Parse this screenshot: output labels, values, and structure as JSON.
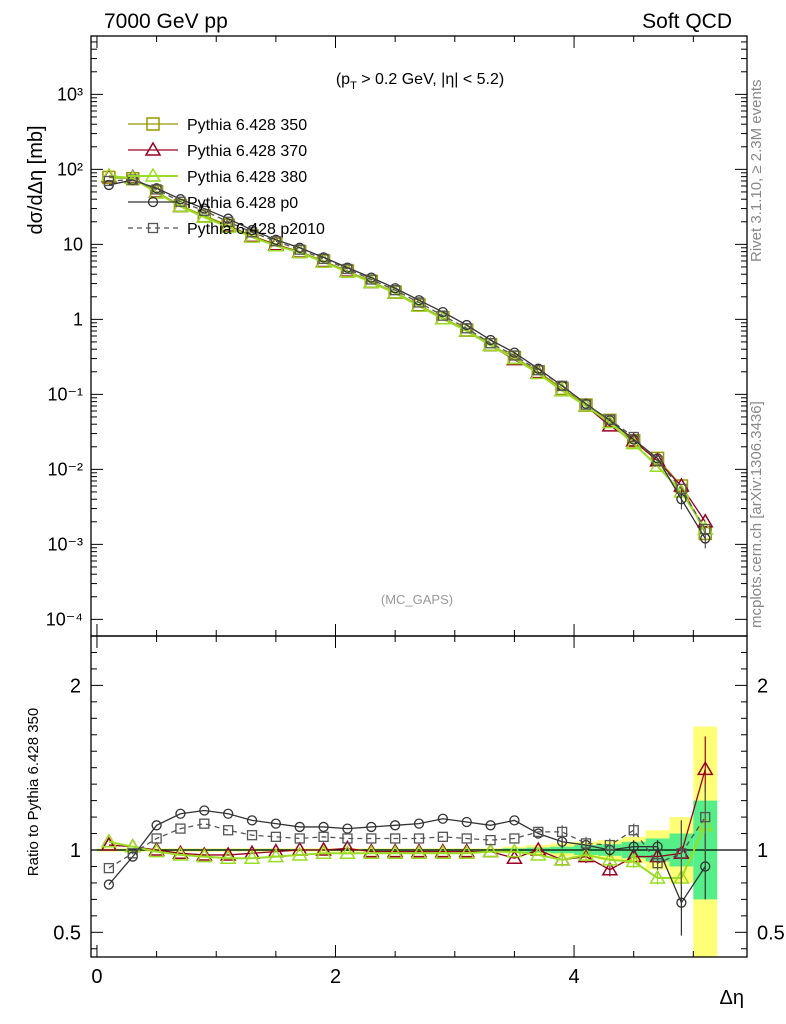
{
  "header": {
    "left": "7000 GeV pp",
    "right": "Soft QCD"
  },
  "annotations": {
    "cut_label": "(p_T > 0.2 GeV, |η| < 5.2)",
    "watermark": "(MC_GAPS)",
    "side_right_top": "Rivet 3.1.10, ≥ 2.3M events",
    "side_right_bottom": "mcplots.cern.ch [arXiv:1306.3436]"
  },
  "colors": {
    "p350": "#999900",
    "p370": "#990022",
    "p380": "#99dd22",
    "p0": "#333333",
    "p2010": "#555555",
    "band_outer": "#ffff77",
    "band_inner": "#55ee88"
  },
  "chart_data": [
    {
      "type": "line",
      "xlabel": "Δη",
      "ylabel": "dσ/dΔη [mb]",
      "yscale": "log",
      "ylim": [
        6e-05,
        6000
      ],
      "xlim": [
        -0.05,
        5.45
      ],
      "y_ticks": [
        "10⁻⁴",
        "10⁻³",
        "10⁻²",
        "10⁻¹",
        "1",
        "10",
        "10²",
        "10³"
      ],
      "x": [
        0.1,
        0.3,
        0.5,
        0.7,
        0.9,
        1.1,
        1.3,
        1.5,
        1.7,
        1.9,
        2.1,
        2.3,
        2.5,
        2.7,
        2.9,
        3.1,
        3.3,
        3.5,
        3.7,
        3.9,
        4.1,
        4.3,
        4.5,
        4.7,
        4.9,
        5.1
      ],
      "legend_position": "top-left",
      "series": [
        {
          "name": "Pythia 6.428 350",
          "marker": "square",
          "colorKey": "p350",
          "dashed": false,
          "values": [
            78,
            75,
            50,
            33,
            24,
            18,
            13,
            10,
            8.0,
            6.0,
            4.4,
            3.2,
            2.3,
            1.55,
            1.05,
            0.72,
            0.46,
            0.31,
            0.2,
            0.12,
            0.072,
            0.045,
            0.024,
            0.014,
            0.006,
            0.0014
          ]
        },
        {
          "name": "Pythia 6.428 370",
          "marker": "triangle",
          "colorKey": "p370",
          "dashed": false,
          "values": [
            80,
            78,
            50,
            32,
            23,
            17.5,
            12.8,
            9.9,
            7.9,
            5.9,
            4.4,
            3.1,
            2.25,
            1.52,
            1.02,
            0.7,
            0.45,
            0.29,
            0.195,
            0.112,
            0.07,
            0.038,
            0.024,
            0.013,
            0.006,
            0.002
          ]
        },
        {
          "name": "Pythia 6.428 380",
          "marker": "triangle-open",
          "colorKey": "p380",
          "dashed": false,
          "values": [
            82,
            76,
            49,
            32,
            23,
            17,
            12.5,
            9.6,
            7.8,
            5.8,
            4.3,
            3.1,
            2.25,
            1.5,
            1.02,
            0.7,
            0.45,
            0.3,
            0.19,
            0.112,
            0.07,
            0.042,
            0.022,
            0.011,
            0.005,
            0.0016
          ]
        },
        {
          "name": "Pythia 6.428 p0",
          "marker": "circle",
          "colorKey": "p0",
          "dashed": false,
          "values": [
            62,
            72,
            56,
            40,
            30,
            22,
            15.5,
            11.5,
            9.0,
            6.7,
            4.9,
            3.6,
            2.6,
            1.8,
            1.25,
            0.84,
            0.53,
            0.36,
            0.22,
            0.13,
            0.075,
            0.045,
            0.025,
            0.014,
            0.004,
            0.0012
          ]
        },
        {
          "name": "Pythia 6.428 p2010",
          "marker": "square-small",
          "colorKey": "p2010",
          "dashed": true,
          "values": [
            70,
            73,
            54,
            37,
            28,
            20,
            14.5,
            11,
            8.5,
            6.4,
            4.7,
            3.4,
            2.45,
            1.68,
            1.12,
            0.76,
            0.48,
            0.33,
            0.21,
            0.13,
            0.073,
            0.046,
            0.027,
            0.013,
            0.0055,
            0.0016
          ]
        }
      ]
    },
    {
      "type": "line",
      "xlabel": "Δη",
      "ylabel": "Ratio to Pythia 6.428 350",
      "ylim": [
        0.35,
        2.3
      ],
      "xlim": [
        -0.05,
        5.45
      ],
      "y_ticks": [
        "0.5",
        "1",
        "2"
      ],
      "x_ticks": [
        "0",
        "2",
        "4"
      ],
      "x": [
        0.1,
        0.3,
        0.5,
        0.7,
        0.9,
        1.1,
        1.3,
        1.5,
        1.7,
        1.9,
        2.1,
        2.3,
        2.5,
        2.7,
        2.9,
        3.1,
        3.3,
        3.5,
        3.7,
        3.9,
        4.1,
        4.3,
        4.5,
        4.7,
        4.9,
        5.1
      ],
      "band_outer_halfwidth": [
        0.01,
        0.01,
        0.01,
        0.01,
        0.01,
        0.01,
        0.01,
        0.01,
        0.01,
        0.01,
        0.01,
        0.01,
        0.01,
        0.01,
        0.01,
        0.01,
        0.01,
        0.02,
        0.03,
        0.04,
        0.05,
        0.06,
        0.08,
        0.12,
        0.2,
        0.75
      ],
      "band_inner_halfwidth": [
        0.005,
        0.005,
        0.005,
        0.005,
        0.005,
        0.005,
        0.005,
        0.005,
        0.005,
        0.005,
        0.005,
        0.005,
        0.005,
        0.005,
        0.005,
        0.005,
        0.005,
        0.01,
        0.015,
        0.02,
        0.03,
        0.035,
        0.05,
        0.07,
        0.1,
        0.3
      ],
      "series": [
        {
          "name": "Pythia 6.428 370",
          "colorKey": "p370",
          "marker": "triangle",
          "dashed": false,
          "values": [
            1.03,
            1.02,
            1.0,
            0.98,
            0.97,
            0.97,
            0.98,
            0.99,
            1.0,
            1.0,
            1.01,
            0.99,
            0.99,
            0.99,
            0.99,
            0.99,
            0.99,
            0.95,
            1.0,
            0.94,
            0.96,
            0.88,
            0.96,
            0.96,
            0.98,
            1.49
          ]
        },
        {
          "name": "Pythia 6.428 380",
          "colorKey": "p380",
          "marker": "triangle-open",
          "dashed": false,
          "values": [
            1.05,
            1.02,
            0.99,
            0.97,
            0.96,
            0.95,
            0.95,
            0.96,
            0.97,
            0.98,
            0.98,
            0.98,
            0.98,
            0.98,
            0.98,
            0.98,
            0.99,
            0.99,
            0.97,
            0.94,
            0.97,
            0.94,
            0.93,
            0.83,
            0.83,
            1.15
          ]
        },
        {
          "name": "Pythia 6.428 p0",
          "colorKey": "p0",
          "marker": "circle",
          "dashed": false,
          "values": [
            0.79,
            0.96,
            1.15,
            1.22,
            1.24,
            1.22,
            1.18,
            1.16,
            1.14,
            1.14,
            1.13,
            1.14,
            1.15,
            1.16,
            1.19,
            1.17,
            1.15,
            1.18,
            1.1,
            1.05,
            1.03,
            1.0,
            1.02,
            1.02,
            0.68,
            0.9
          ]
        },
        {
          "name": "Pythia 6.428 p2010",
          "colorKey": "p2010",
          "marker": "square-small",
          "dashed": true,
          "values": [
            0.89,
            0.98,
            1.07,
            1.13,
            1.16,
            1.12,
            1.09,
            1.08,
            1.07,
            1.08,
            1.07,
            1.07,
            1.07,
            1.07,
            1.08,
            1.07,
            1.06,
            1.07,
            1.11,
            1.11,
            1.04,
            1.03,
            1.12,
            0.92,
            0.98,
            1.2
          ]
        }
      ]
    }
  ]
}
